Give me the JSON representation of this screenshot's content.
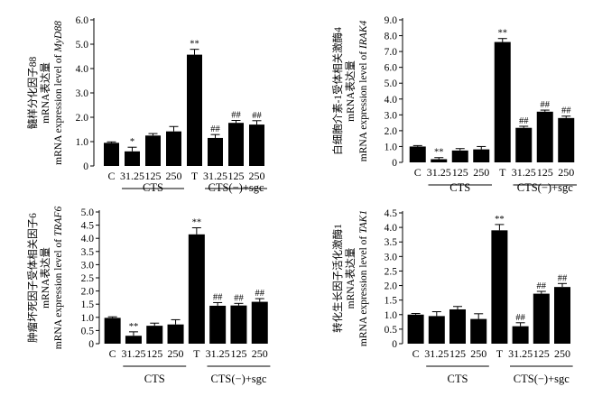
{
  "chart_data": [
    {
      "type": "bar",
      "panel": "top-left",
      "ylabel_lines": [
        "髓样分化因子88",
        "mRNA表达量",
        "mRNA expression level of ",
        "MyD88"
      ],
      "yticks": [
        "0",
        "1.0",
        "2.0",
        "3.0",
        "4.0",
        "5.0",
        "6.0"
      ],
      "ylim": [
        0,
        6
      ],
      "categories": [
        "C",
        "31.25",
        "125",
        "250",
        "T",
        "31.25",
        "125",
        "250"
      ],
      "values": [
        0.95,
        0.6,
        1.25,
        1.42,
        4.57,
        1.15,
        1.77,
        1.7
      ],
      "errors": [
        0.04,
        0.17,
        0.08,
        0.2,
        0.22,
        0.14,
        0.1,
        0.16
      ],
      "annotations": [
        "",
        "*",
        "",
        "",
        "**",
        "##",
        "##",
        "##"
      ],
      "groups": [
        {
          "label": "CTS",
          "from": 1,
          "to": 3
        },
        {
          "label": "CTS(−)+sgc",
          "from": 5,
          "to": 7
        }
      ]
    },
    {
      "type": "bar",
      "panel": "top-right",
      "ylabel_lines": [
        "白细胞介素-1受体相关激酶4",
        "mRNA表达量",
        "mRNA expression level of ",
        "IRAK4"
      ],
      "yticks": [
        "0",
        "1.0",
        "2.0",
        "3.0",
        "4.0",
        "5.0",
        "6.0",
        "7.0",
        "8.0",
        "9.0"
      ],
      "ylim": [
        0,
        9
      ],
      "categories": [
        "C",
        "31.25",
        "125",
        "250",
        "T",
        "31.25",
        "125",
        "250"
      ],
      "values": [
        1.0,
        0.2,
        0.75,
        0.82,
        7.6,
        2.18,
        3.2,
        2.8
      ],
      "errors": [
        0.06,
        0.1,
        0.12,
        0.18,
        0.22,
        0.1,
        0.1,
        0.12
      ],
      "annotations": [
        "",
        "**",
        "",
        "",
        "**",
        "##",
        "##",
        "##"
      ],
      "groups": [
        {
          "label": "CTS",
          "from": 1,
          "to": 3
        },
        {
          "label": "CTS(−)+sgc",
          "from": 5,
          "to": 7
        }
      ]
    },
    {
      "type": "bar",
      "panel": "bottom-left",
      "ylabel_lines": [
        "肿瘤坏死因子受体相关因子6",
        "mRNA表达量",
        "mRNA expression level of ",
        "TRAF6"
      ],
      "yticks": [
        "0",
        "0.5",
        "1.0",
        "1.5",
        "2.0",
        "2.5",
        "3.0",
        "3.5",
        "4.0",
        "4.5",
        "5.0"
      ],
      "ylim": [
        0,
        5
      ],
      "categories": [
        "C",
        "31.25",
        "125",
        "250",
        "T",
        "31.25",
        "125",
        "250"
      ],
      "values": [
        0.98,
        0.3,
        0.68,
        0.73,
        4.15,
        1.44,
        1.45,
        1.59
      ],
      "errors": [
        0.04,
        0.15,
        0.1,
        0.18,
        0.25,
        0.12,
        0.08,
        0.12
      ],
      "annotations": [
        "",
        "**",
        "",
        "",
        "**",
        "##",
        "##",
        "##"
      ],
      "groups": [
        {
          "label": "CTS",
          "from": 1,
          "to": 3
        },
        {
          "label": "CTS(−)+sgc",
          "from": 5,
          "to": 7
        }
      ]
    },
    {
      "type": "bar",
      "panel": "bottom-right",
      "ylabel_lines": [
        "转化生长因子活化激酶1",
        "mRNA表达量",
        "mRNA expression level of ",
        "TAK1"
      ],
      "yticks": [
        "0",
        "0.5",
        "1.0",
        "1.5",
        "2.0",
        "2.5",
        "3.0",
        "3.5",
        "4.0",
        "4.5"
      ],
      "ylim": [
        0,
        4.5
      ],
      "categories": [
        "C",
        "31.25",
        "125",
        "250",
        "T",
        "31.25",
        "125",
        "250"
      ],
      "values": [
        1.0,
        0.95,
        1.18,
        0.85,
        3.9,
        0.6,
        1.72,
        1.95
      ],
      "errors": [
        0.04,
        0.15,
        0.1,
        0.18,
        0.2,
        0.12,
        0.08,
        0.12
      ],
      "annotations": [
        "",
        "",
        "",
        "",
        "**",
        "##",
        "##",
        "##"
      ],
      "groups": [
        {
          "label": "CTS",
          "from": 1,
          "to": 3
        },
        {
          "label": "CTS(−)+sgc",
          "from": 5,
          "to": 7
        }
      ]
    }
  ]
}
